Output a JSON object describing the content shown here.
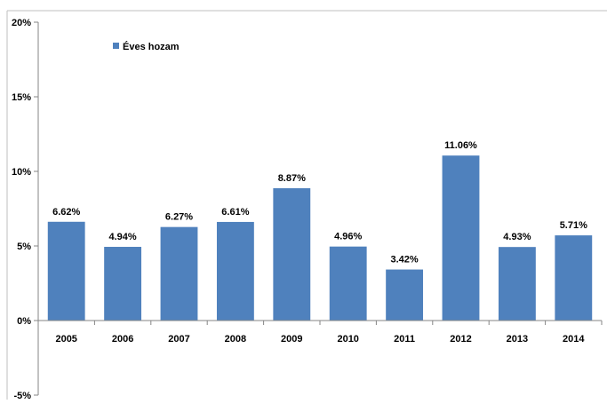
{
  "chart_data": {
    "type": "bar",
    "title": "",
    "xlabel": "",
    "ylabel": "",
    "categories": [
      "2005",
      "2006",
      "2007",
      "2008",
      "2009",
      "2010",
      "2011",
      "2012",
      "2013",
      "2014"
    ],
    "series": [
      {
        "name": "Éves hozam",
        "color": "#4f81bd",
        "values": [
          6.62,
          4.94,
          6.27,
          6.61,
          8.87,
          4.96,
          3.42,
          11.06,
          4.93,
          5.71
        ],
        "labels": [
          "6.62%",
          "4.94%",
          "6.27%",
          "6.61%",
          "8.87%",
          "4.96%",
          "3.42%",
          "11.06%",
          "4.93%",
          "5.71%"
        ]
      }
    ],
    "ylim": [
      -5,
      20
    ],
    "yticks": [
      -5,
      0,
      5,
      10,
      15,
      20
    ],
    "ytick_labels": [
      "-5%",
      "0%",
      "5%",
      "10%",
      "15%",
      "20%"
    ],
    "grid": false,
    "legend": {
      "position": "top-left",
      "entries": [
        "Éves hozam"
      ]
    }
  }
}
